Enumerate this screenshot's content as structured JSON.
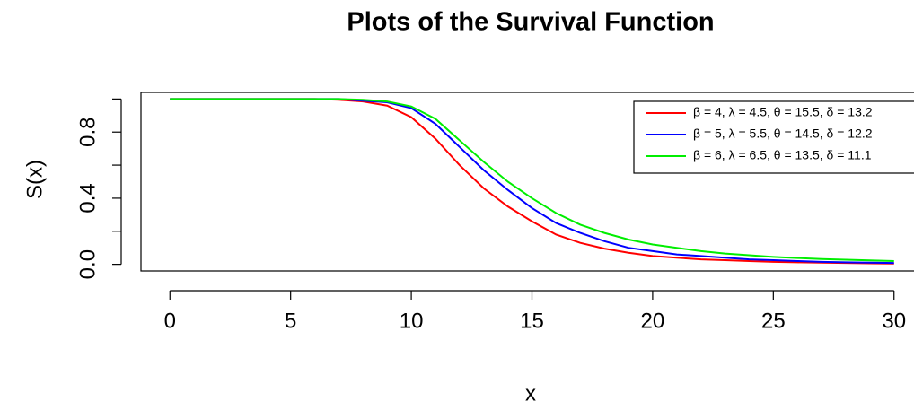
{
  "chart_data": {
    "type": "line",
    "title": "Plots of the Survival Function",
    "x_label": "x",
    "y_label": "S(x)",
    "x": [
      0,
      1,
      2,
      3,
      4,
      5,
      6,
      7,
      8,
      9,
      10,
      11,
      12,
      13,
      14,
      15,
      16,
      17,
      18,
      19,
      20,
      21,
      22,
      23,
      24,
      25,
      26,
      27,
      28,
      29,
      30
    ],
    "series": [
      {
        "name": "β = 4, λ = 4.5, θ = 15.5, δ = 13.2",
        "color": "#ff0000",
        "values": [
          1,
          1,
          1,
          1,
          1,
          1,
          1,
          0.995,
          0.985,
          0.96,
          0.89,
          0.76,
          0.6,
          0.46,
          0.35,
          0.26,
          0.18,
          0.13,
          0.095,
          0.07,
          0.05,
          0.04,
          0.03,
          0.025,
          0.02,
          0.015,
          0.012,
          0.01,
          0.008,
          0.006,
          0.005
        ]
      },
      {
        "name": "β = 5, λ = 5.5, θ = 14.5, δ = 12.2",
        "color": "#0000ff",
        "values": [
          1,
          1,
          1,
          1,
          1,
          1,
          1,
          1,
          0.99,
          0.98,
          0.945,
          0.85,
          0.71,
          0.57,
          0.45,
          0.34,
          0.25,
          0.19,
          0.14,
          0.1,
          0.08,
          0.06,
          0.05,
          0.04,
          0.03,
          0.025,
          0.02,
          0.015,
          0.012,
          0.01,
          0.008
        ]
      },
      {
        "name": "β = 6, λ = 6.5, θ = 13.5, δ = 11.1",
        "color": "#00ee00",
        "values": [
          1,
          1,
          1,
          1,
          1,
          1,
          1,
          1,
          0.995,
          0.985,
          0.955,
          0.88,
          0.75,
          0.62,
          0.5,
          0.4,
          0.31,
          0.24,
          0.19,
          0.15,
          0.12,
          0.1,
          0.08,
          0.065,
          0.055,
          0.045,
          0.038,
          0.032,
          0.028,
          0.024,
          0.02
        ]
      }
    ],
    "xlim": [
      -1.2,
      31.2
    ],
    "ylim": [
      -0.04,
      1.04
    ],
    "xticks": [
      0,
      5,
      10,
      15,
      20,
      25,
      30
    ],
    "yticks": [
      {
        "value": 0,
        "label": "0.0"
      },
      0.4,
      0.8
    ],
    "minor_yticks": [
      0.2,
      0.6,
      1.0
    ],
    "legend": "top-right"
  }
}
